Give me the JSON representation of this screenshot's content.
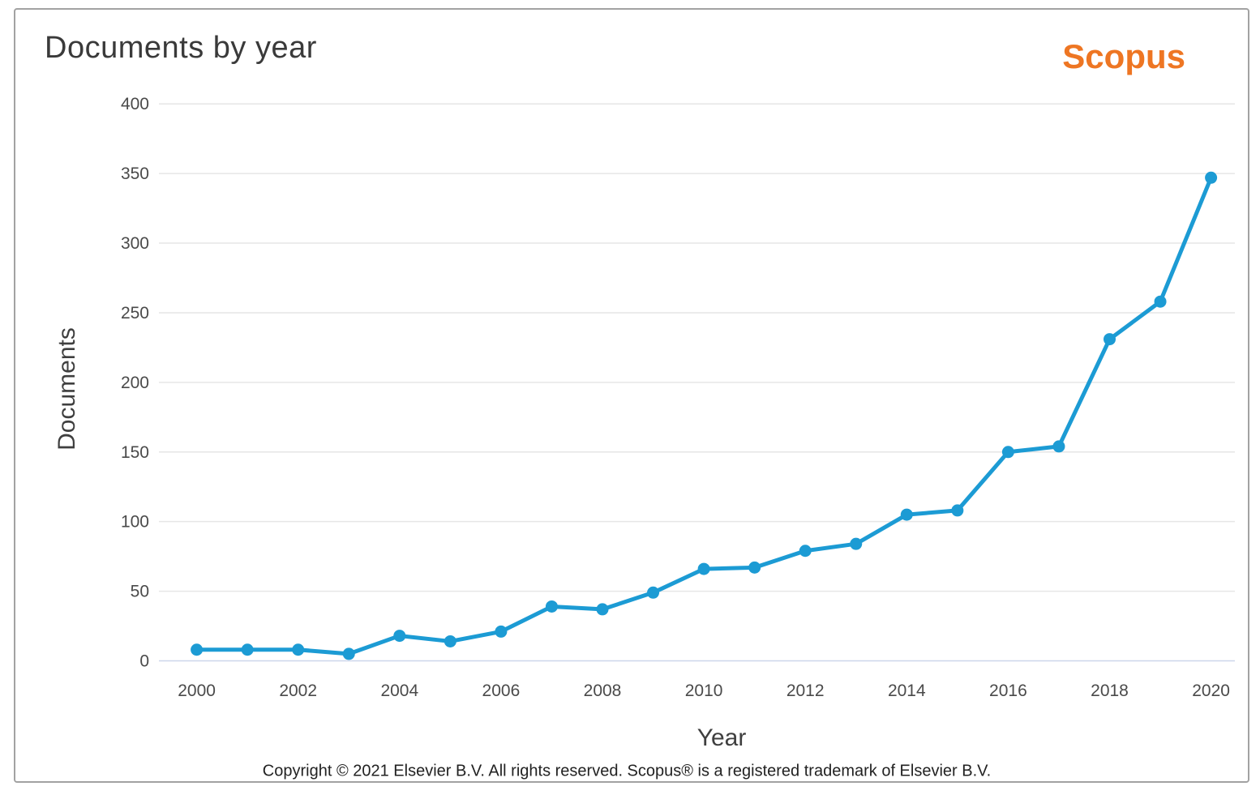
{
  "card": {
    "title": "Documents by year",
    "logo_text": "Scopus",
    "footer": "Copyright © 2021 Elsevier B.V. All rights reserved. Scopus® is a registered trademark of Elsevier B.V."
  },
  "colors": {
    "series_line": "#1c9bd4",
    "scopus_orange": "#ee7623",
    "gridline": "#e6e6e6",
    "axis_line": "#ccd6eb"
  },
  "chart_data": {
    "type": "line",
    "title": "Documents by year",
    "xlabel": "Year",
    "ylabel": "Documents",
    "x": [
      2000,
      2001,
      2002,
      2003,
      2004,
      2005,
      2006,
      2007,
      2008,
      2009,
      2010,
      2011,
      2012,
      2013,
      2014,
      2015,
      2016,
      2017,
      2018,
      2019,
      2020
    ],
    "series": [
      {
        "name": "Documents",
        "values": [
          8,
          8,
          8,
          5,
          18,
          14,
          21,
          39,
          37,
          49,
          66,
          67,
          79,
          84,
          105,
          108,
          150,
          154,
          231,
          258,
          347
        ]
      }
    ],
    "ylim": [
      0,
      400
    ],
    "ytick_step": 50,
    "xtick_step": 2,
    "grid": "horizontal",
    "legend": "none",
    "marker": "circle"
  }
}
